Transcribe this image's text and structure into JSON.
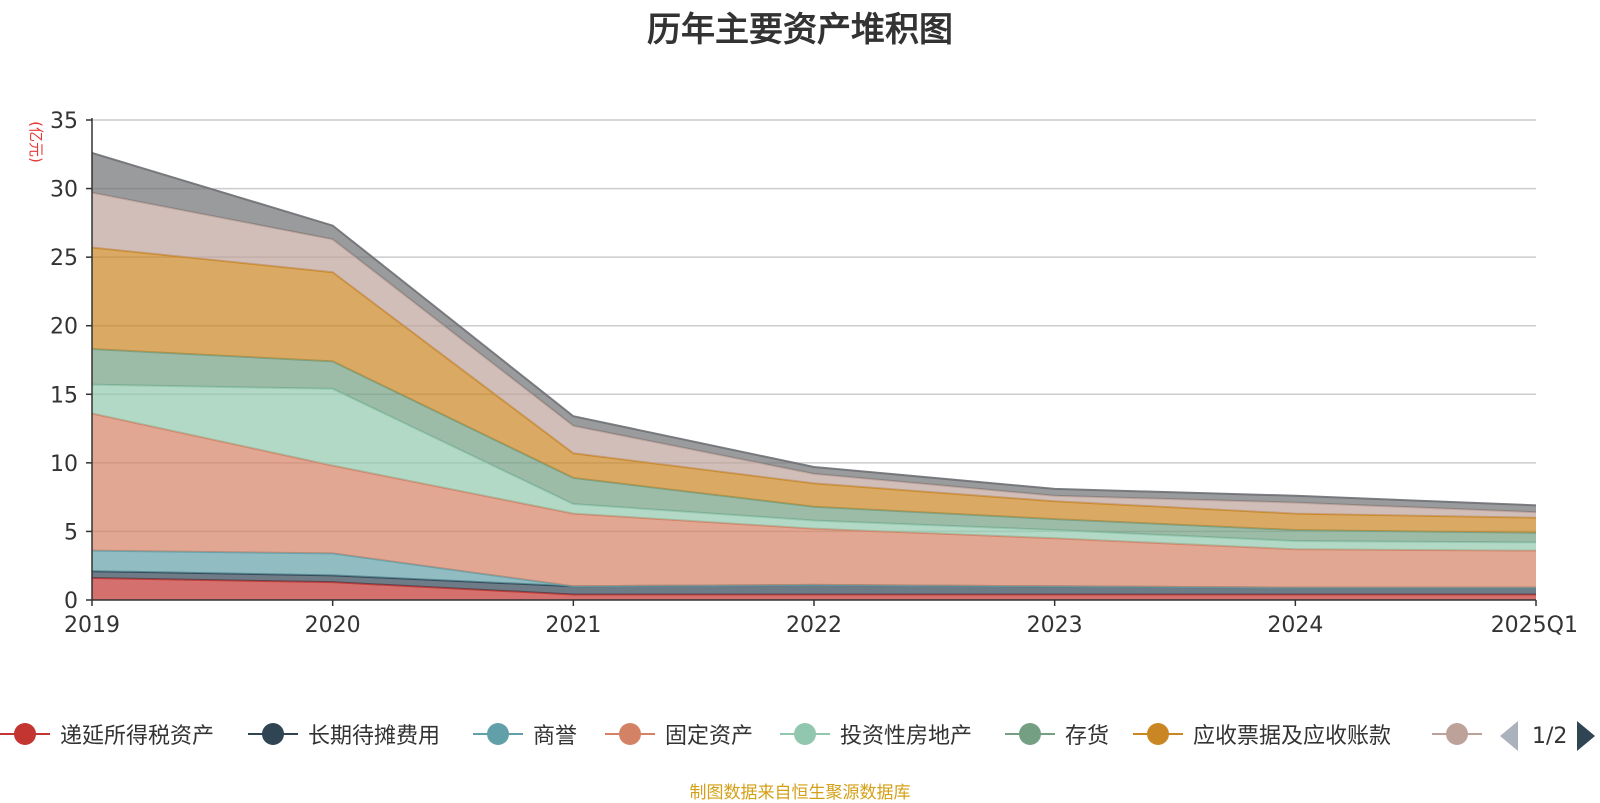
{
  "chart_data": {
    "type": "area",
    "stacked": true,
    "title": "历年主要资产堆积图",
    "ylabel": "(亿元)",
    "xlabel": "",
    "categories": [
      "2019",
      "2020",
      "2021",
      "2022",
      "2023",
      "2024",
      "2025Q1"
    ],
    "ylim": [
      0,
      35
    ],
    "yticks": [
      0,
      5,
      10,
      15,
      20,
      25,
      30,
      35
    ],
    "grid": true,
    "legend_position": "bottom",
    "legend_page": "1/2",
    "series": [
      {
        "name": "递延所得税资产",
        "color": "#c23531",
        "values": [
          1.6,
          1.3,
          0.4,
          0.4,
          0.4,
          0.4,
          0.4
        ]
      },
      {
        "name": "长期待摊费用",
        "color": "#2f4554",
        "values": [
          0.5,
          0.5,
          0.6,
          0.7,
          0.6,
          0.5,
          0.5
        ]
      },
      {
        "name": "商誉",
        "color": "#61a0a8",
        "values": [
          1.5,
          1.6,
          0,
          0,
          0,
          0,
          0
        ]
      },
      {
        "name": "固定资产",
        "color": "#d48265",
        "values": [
          10.0,
          6.4,
          5.3,
          4.1,
          3.5,
          2.8,
          2.7
        ]
      },
      {
        "name": "投资性房地产",
        "color": "#91c7ae",
        "values": [
          2.1,
          5.6,
          0.7,
          0.6,
          0.6,
          0.6,
          0.6
        ]
      },
      {
        "name": "存货",
        "color": "#749f83",
        "values": [
          2.6,
          2.0,
          1.9,
          1.0,
          0.8,
          0.8,
          0.7
        ]
      },
      {
        "name": "应收票据及应收账款",
        "color": "#ca8622",
        "values": [
          7.4,
          6.5,
          1.8,
          1.7,
          1.3,
          1.2,
          1.1
        ]
      },
      {
        "name": "",
        "color": "#bda29a",
        "values": [
          4.0,
          2.4,
          2.0,
          0.7,
          0.4,
          0.8,
          0.4
        ]
      },
      {
        "name": "",
        "color": "#6e7074",
        "values": [
          2.9,
          1.0,
          0.7,
          0.5,
          0.5,
          0.5,
          0.5
        ]
      }
    ]
  },
  "footer": {
    "source": "制图数据来自恒生聚源数据库"
  }
}
